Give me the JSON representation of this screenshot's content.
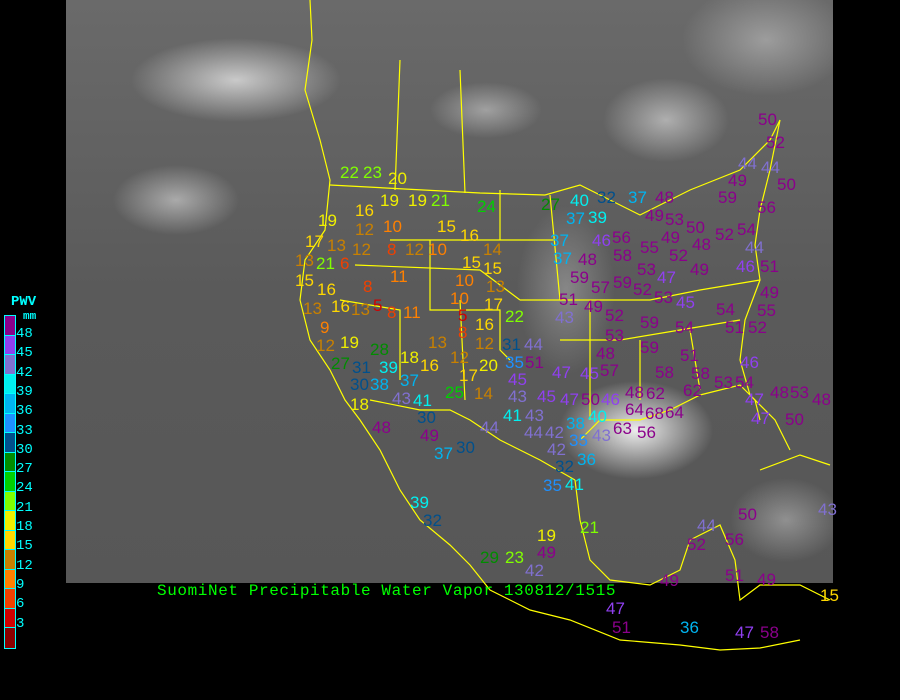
{
  "title": "SuomiNet Precipitable Water Vapor 130812/1515",
  "legend": {
    "title": "PWV",
    "unit": "mm",
    "ticks": [
      "48",
      "45",
      "42",
      "39",
      "36",
      "33",
      "30",
      "27",
      "24",
      "21",
      "18",
      "15",
      "12",
      "9",
      "6",
      "3"
    ],
    "colors_top_to_bottom": [
      "#8b008b",
      "#9040f0",
      "#8070d0",
      "#00f0f0",
      "#00b4f0",
      "#1e90ff",
      "#00508c",
      "#008c00",
      "#00d000",
      "#80ff00",
      "#f0f000",
      "#ffd700",
      "#c88000",
      "#ff8000",
      "#f04000",
      "#d00000",
      "#8b0000"
    ]
  },
  "map": {
    "background": "GOES infrared satellite imagery",
    "border_color": "#ffff00"
  },
  "stations": [
    "22",
    "23",
    "20",
    "19",
    "19",
    "21",
    "24",
    "16",
    "19",
    "12",
    "10",
    "12",
    "17",
    "13",
    "8",
    "12",
    "10",
    "15",
    "16",
    "14",
    "13",
    "21",
    "6",
    "15",
    "15",
    "10",
    "15",
    "13",
    "11",
    "8",
    "16",
    "16",
    "13",
    "13",
    "5",
    "10",
    "17",
    "8",
    "11",
    "5",
    "16",
    "22",
    "8",
    "9",
    "12",
    "19",
    "27",
    "28",
    "13",
    "12",
    "12",
    "31",
    "44",
    "39",
    "18",
    "37",
    "16",
    "17",
    "20",
    "35",
    "31",
    "30",
    "38",
    "18",
    "43",
    "41",
    "30",
    "25",
    "14",
    "45",
    "43",
    "41",
    "43",
    "45",
    "49",
    "48",
    "44",
    "37",
    "30",
    "42",
    "43",
    "52",
    "59",
    "53",
    "48",
    "59",
    "54",
    "51",
    "58",
    "51",
    "52",
    "57",
    "58",
    "47",
    "45",
    "51",
    "47",
    "48",
    "62",
    "64",
    "68",
    "62",
    "53",
    "54",
    "46",
    "48",
    "50",
    "46",
    "38",
    "40",
    "63",
    "64",
    "43",
    "56",
    "44",
    "42",
    "35",
    "36",
    "47",
    "50",
    "27",
    "40",
    "32",
    "37",
    "39",
    "37",
    "48",
    "49",
    "53",
    "37",
    "37",
    "46",
    "56",
    "58",
    "55",
    "48",
    "49",
    "50",
    "48",
    "52",
    "52",
    "49",
    "53",
    "47",
    "59",
    "57",
    "59",
    "49",
    "52",
    "53",
    "45",
    "51",
    "54",
    "55",
    "49",
    "44",
    "46",
    "51",
    "49",
    "59",
    "56",
    "50",
    "44",
    "44",
    "50",
    "52",
    "54",
    "47",
    "53",
    "48",
    "39",
    "32",
    "32",
    "41",
    "35",
    "21",
    "19",
    "49",
    "29",
    "23",
    "42",
    "44",
    "52",
    "50",
    "56",
    "43",
    "49",
    "51",
    "49",
    "15",
    "47",
    "51",
    "36",
    "47",
    "58"
  ]
}
